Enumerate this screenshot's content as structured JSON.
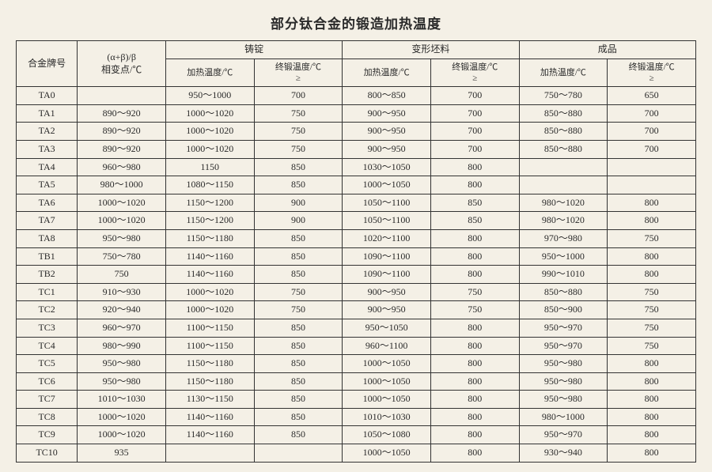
{
  "title": "部分钛合金的锻造加热温度",
  "header": {
    "alloy": "合金牌号",
    "phase": "(α+β)/β\n相变点/℃",
    "group1": "铸锭",
    "group2": "变形坯料",
    "group3": "成品",
    "heat": "加热温度/℃",
    "final": "终锻温度/℃\n≥"
  },
  "rows": [
    {
      "alloy": "TA0",
      "phase": "",
      "h1": "950～1000",
      "f1": "700",
      "h2": "800～850",
      "f2": "700",
      "h3": "750～780",
      "f3": "650"
    },
    {
      "alloy": "TA1",
      "phase": "890～920",
      "h1": "1000～1020",
      "f1": "750",
      "h2": "900～950",
      "f2": "700",
      "h3": "850～880",
      "f3": "700"
    },
    {
      "alloy": "TA2",
      "phase": "890～920",
      "h1": "1000～1020",
      "f1": "750",
      "h2": "900～950",
      "f2": "700",
      "h3": "850～880",
      "f3": "700"
    },
    {
      "alloy": "TA3",
      "phase": "890～920",
      "h1": "1000～1020",
      "f1": "750",
      "h2": "900～950",
      "f2": "700",
      "h3": "850～880",
      "f3": "700"
    },
    {
      "alloy": "TA4",
      "phase": "960～980",
      "h1": "1150",
      "f1": "850",
      "h2": "1030～1050",
      "f2": "800",
      "h3": "",
      "f3": ""
    },
    {
      "alloy": "TA5",
      "phase": "980～1000",
      "h1": "1080～1150",
      "f1": "850",
      "h2": "1000～1050",
      "f2": "800",
      "h3": "",
      "f3": ""
    },
    {
      "alloy": "TA6",
      "phase": "1000～1020",
      "h1": "1150～1200",
      "f1": "900",
      "h2": "1050～1100",
      "f2": "850",
      "h3": "980～1020",
      "f3": "800"
    },
    {
      "alloy": "TA7",
      "phase": "1000～1020",
      "h1": "1150～1200",
      "f1": "900",
      "h2": "1050～1100",
      "f2": "850",
      "h3": "980～1020",
      "f3": "800"
    },
    {
      "alloy": "TA8",
      "phase": "950～980",
      "h1": "1150～1180",
      "f1": "850",
      "h2": "1020～1100",
      "f2": "800",
      "h3": "970～980",
      "f3": "750"
    },
    {
      "alloy": "TB1",
      "phase": "750～780",
      "h1": "1140～1160",
      "f1": "850",
      "h2": "1090～1100",
      "f2": "800",
      "h3": "950～1000",
      "f3": "800"
    },
    {
      "alloy": "TB2",
      "phase": "750",
      "h1": "1140～1160",
      "f1": "850",
      "h2": "1090～1100",
      "f2": "800",
      "h3": "990～1010",
      "f3": "800"
    },
    {
      "alloy": "TC1",
      "phase": "910～930",
      "h1": "1000～1020",
      "f1": "750",
      "h2": "900～950",
      "f2": "750",
      "h3": "850～880",
      "f3": "750"
    },
    {
      "alloy": "TC2",
      "phase": "920～940",
      "h1": "1000～1020",
      "f1": "750",
      "h2": "900～950",
      "f2": "750",
      "h3": "850～900",
      "f3": "750"
    },
    {
      "alloy": "TC3",
      "phase": "960～970",
      "h1": "1100～1150",
      "f1": "850",
      "h2": "950～1050",
      "f2": "800",
      "h3": "950～970",
      "f3": "750"
    },
    {
      "alloy": "TC4",
      "phase": "980～990",
      "h1": "1100～1150",
      "f1": "850",
      "h2": "960～1100",
      "f2": "800",
      "h3": "950～970",
      "f3": "750"
    },
    {
      "alloy": "TC5",
      "phase": "950～980",
      "h1": "1150～1180",
      "f1": "850",
      "h2": "1000～1050",
      "f2": "800",
      "h3": "950～980",
      "f3": "800"
    },
    {
      "alloy": "TC6",
      "phase": "950～980",
      "h1": "1150～1180",
      "f1": "850",
      "h2": "1000～1050",
      "f2": "800",
      "h3": "950～980",
      "f3": "800"
    },
    {
      "alloy": "TC7",
      "phase": "1010～1030",
      "h1": "1130～1150",
      "f1": "850",
      "h2": "1000～1050",
      "f2": "800",
      "h3": "950～980",
      "f3": "800"
    },
    {
      "alloy": "TC8",
      "phase": "1000～1020",
      "h1": "1140～1160",
      "f1": "850",
      "h2": "1010～1030",
      "f2": "800",
      "h3": "980～1000",
      "f3": "800"
    },
    {
      "alloy": "TC9",
      "phase": "1000～1020",
      "h1": "1140～1160",
      "f1": "850",
      "h2": "1050～1080",
      "f2": "800",
      "h3": "950～970",
      "f3": "800"
    },
    {
      "alloy": "TC10",
      "phase": "935",
      "h1": "",
      "f1": "",
      "h2": "1000～1050",
      "f2": "800",
      "h3": "930～940",
      "f3": "800"
    }
  ]
}
